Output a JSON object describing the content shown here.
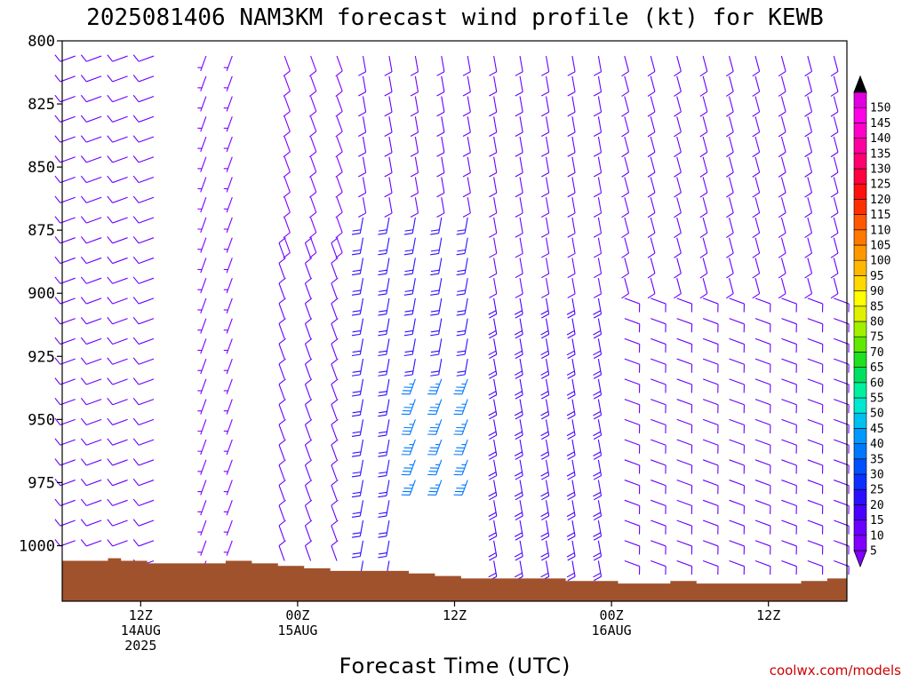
{
  "chart_data": {
    "type": "wind-barb-profile",
    "title": "2025081406 NAM3KM forecast wind profile (kt) for KEWB",
    "xlabel": "Forecast Time (UTC)",
    "ylabel": "",
    "credit": "coolwx.com/models",
    "y_ticks": [
      800,
      825,
      850,
      875,
      900,
      925,
      950,
      975,
      1000
    ],
    "ylim": [
      800,
      1022
    ],
    "x_ticks": [
      {
        "hour": 6,
        "lines": [
          "12Z",
          "14AUG",
          "2025"
        ]
      },
      {
        "hour": 18,
        "lines": [
          "00Z",
          "15AUG"
        ]
      },
      {
        "hour": 30,
        "lines": [
          "12Z"
        ]
      },
      {
        "hour": 42,
        "lines": [
          "00Z",
          "16AUG"
        ]
      },
      {
        "hour": 54,
        "lines": [
          "12Z"
        ]
      }
    ],
    "xlim": [
      0,
      60
    ],
    "colorbar_levels": [
      5,
      10,
      15,
      20,
      25,
      30,
      35,
      40,
      45,
      50,
      55,
      60,
      65,
      70,
      75,
      80,
      85,
      90,
      95,
      100,
      105,
      110,
      115,
      120,
      125,
      130,
      135,
      140,
      145,
      150
    ],
    "colorbar_colors": [
      "#7f00ff",
      "#6a00ff",
      "#4a00ff",
      "#2a10ff",
      "#0a30ff",
      "#0050ff",
      "#0077ff",
      "#0099ff",
      "#00c0f0",
      "#00e8d0",
      "#00f0a0",
      "#00e060",
      "#20e020",
      "#60e800",
      "#a0f000",
      "#e0f000",
      "#ffff00",
      "#ffd800",
      "#ffb800",
      "#ff9800",
      "#ff7800",
      "#ff5800",
      "#ff3000",
      "#ff1010",
      "#ff0040",
      "#ff0070",
      "#ff00a0",
      "#ff00c8",
      "#ff00e8",
      "#e000e0"
    ],
    "surface_pressure": [
      {
        "hour": 0,
        "p": 1006
      },
      {
        "hour": 2.5,
        "p": 1006
      },
      {
        "hour": 3.5,
        "p": 1005
      },
      {
        "hour": 4.5,
        "p": 1006
      },
      {
        "hour": 6.5,
        "p": 1007
      },
      {
        "hour": 12.5,
        "p": 1006
      },
      {
        "hour": 14.5,
        "p": 1007
      },
      {
        "hour": 16.5,
        "p": 1008
      },
      {
        "hour": 18.5,
        "p": 1009
      },
      {
        "hour": 20.5,
        "p": 1010
      },
      {
        "hour": 26.5,
        "p": 1011
      },
      {
        "hour": 28.5,
        "p": 1012
      },
      {
        "hour": 30.5,
        "p": 1013
      },
      {
        "hour": 38.5,
        "p": 1014
      },
      {
        "hour": 42.5,
        "p": 1015
      },
      {
        "hour": 46.5,
        "p": 1014
      },
      {
        "hour": 48.5,
        "p": 1015
      },
      {
        "hour": 56.5,
        "p": 1014
      },
      {
        "hour": 58.5,
        "p": 1013
      },
      {
        "hour": 60,
        "p": 1013
      }
    ],
    "barb_levels": [
      806,
      814,
      822,
      830,
      838,
      846,
      854,
      862,
      870,
      878,
      886,
      894,
      902,
      910,
      918,
      926,
      934,
      942,
      950,
      958,
      966,
      974,
      982,
      990,
      998,
      1006
    ],
    "wind_regimes": [
      {
        "hours": [
          0,
          9
        ],
        "p": [
          800,
          1010
        ],
        "dir": 250,
        "speed": 10
      },
      {
        "hours": [
          11,
          15
        ],
        "p": [
          800,
          1010
        ],
        "dir": 200,
        "speed": 7
      },
      {
        "hours": [
          17,
          22
        ],
        "p": [
          800,
          880
        ],
        "dir": 160,
        "speed": 8
      },
      {
        "hours": [
          17,
          22
        ],
        "p": [
          880,
          1010
        ],
        "dir": 340,
        "speed": 10
      },
      {
        "hours": [
          22,
          32
        ],
        "p": [
          800,
          870
        ],
        "dir": 170,
        "speed": 12
      },
      {
        "hours": [
          22,
          32
        ],
        "p": [
          870,
          930
        ],
        "dir": 190,
        "speed": 22
      },
      {
        "hours": [
          26,
          32
        ],
        "p": [
          930,
          975
        ],
        "dir": 200,
        "speed": 35
      },
      {
        "hours": [
          22,
          26
        ],
        "p": [
          930,
          1010
        ],
        "dir": 190,
        "speed": 20
      },
      {
        "hours": [
          32,
          42
        ],
        "p": [
          800,
          900
        ],
        "dir": 170,
        "speed": 12
      },
      {
        "hours": [
          32,
          42
        ],
        "p": [
          900,
          1010
        ],
        "dir": 170,
        "speed": 18
      },
      {
        "hours": [
          42,
          60
        ],
        "p": [
          800,
          900
        ],
        "dir": 165,
        "speed": 10
      },
      {
        "hours": [
          42,
          60
        ],
        "p": [
          900,
          1015
        ],
        "dir": 110,
        "speed": 12
      }
    ]
  }
}
